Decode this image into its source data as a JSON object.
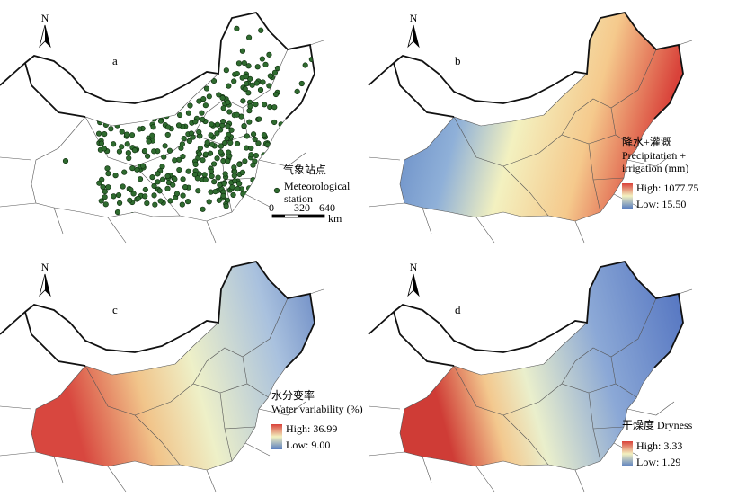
{
  "panels": [
    {
      "label": "a",
      "north": "N",
      "legend": {
        "title_cn": "气象站点",
        "title_en": [
          "Meteorological",
          "station"
        ]
      },
      "scale": {
        "ticks": [
          "0",
          "320",
          "640"
        ],
        "unit": "km"
      }
    },
    {
      "label": "b",
      "north": "N",
      "legend": {
        "title_cn": "降水+灌溉",
        "title_en": [
          "Precipitation +",
          "irrigation (mm)"
        ],
        "high": "High: 1077.75",
        "low": "Low: 15.50"
      }
    },
    {
      "label": "c",
      "north": "N",
      "legend": {
        "title_cn": "水分变率",
        "title_en": [
          "Water variability (%)"
        ],
        "high": "High: 36.99",
        "low": "Low: 9.00"
      }
    },
    {
      "label": "d",
      "north": "N",
      "legend": {
        "title_cn": "干燥度 Dryness",
        "title_en": [],
        "high": "High: 3.33",
        "low": "Low: 1.29"
      }
    }
  ]
}
